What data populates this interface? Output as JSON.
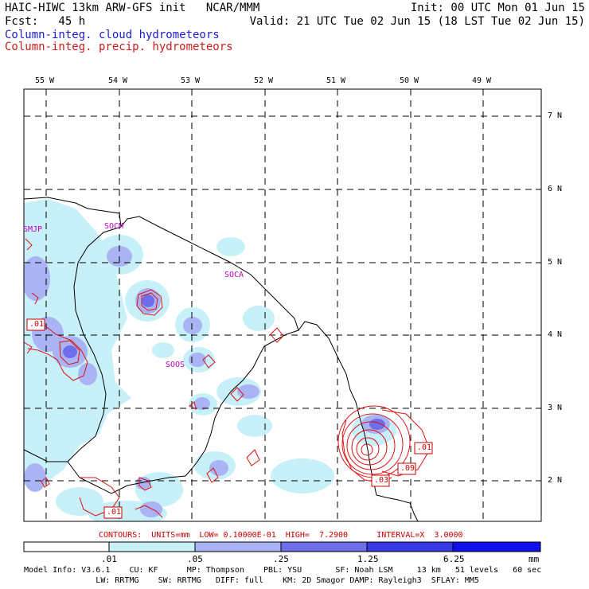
{
  "header": {
    "line1_left": "HAIC-HIWC 13km ARW-GFS init   NCAR/MMM",
    "line1_right": "Init: 00 UTC Mon 01 Jun 15",
    "line2_left": "Fcst:   45 h",
    "line2_right": "Valid: 21 UTC Tue 02 Jun 15 (18 LST Tue 02 Jun 15)",
    "field1": "Column-integ. cloud hydrometeors",
    "field2": "Column-integ. precip. hydrometeors"
  },
  "map": {
    "lon_labels": [
      "55 W",
      "54 W",
      "53 W",
      "52 W",
      "51 W",
      "50 W",
      "49 W"
    ],
    "lat_labels": [
      "7 N",
      "6 N",
      "5 N",
      "4 N",
      "3 N",
      "2 N"
    ],
    "stations": [
      "SMJP",
      "SOCM",
      "SOCA",
      "SOOS"
    ],
    "contour_labels": [
      ".01",
      ".01",
      ".03",
      ".09",
      ".01"
    ]
  },
  "contour_info": "CONTOURS:  UNITS=mm  LOW= 0.10000E-01  HIGH=  7.2900      INTERVAL=X  3.0000",
  "colorbar": {
    "labels": [
      ".01",
      ".05",
      ".25",
      "1.25",
      "6.25"
    ],
    "units": "mm",
    "colors": [
      "#ffffff",
      "#c8f0f8",
      "#aab4f4",
      "#6e6eea",
      "#3838e6",
      "#1010ee"
    ]
  },
  "footer": {
    "line1": "Model Info: V3.6.1    CU: KF      MP: Thompson    PBL: YSU       SF: Noah LSM     13 km   51 levels   60 sec",
    "line2": "               LW: RRTMG    SW: RRTMG   DIFF: full    KM: 2D Smagor DAMP: Rayleigh3  SFLAY: MM5"
  }
}
